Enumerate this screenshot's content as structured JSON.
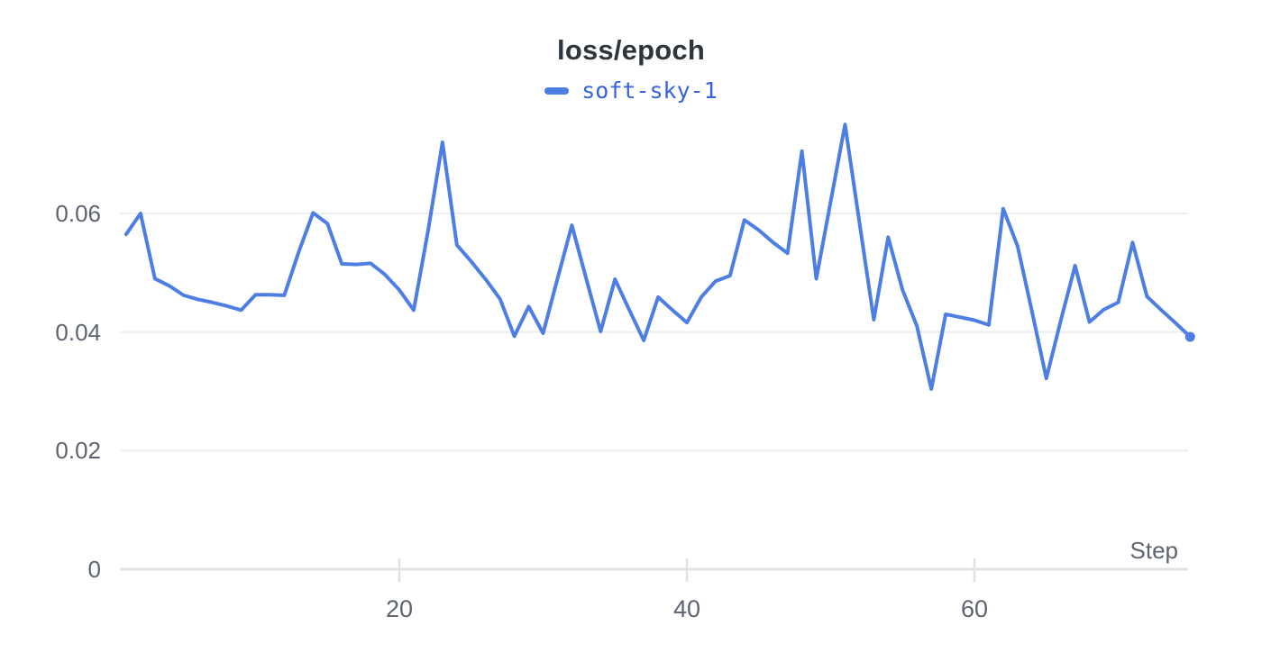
{
  "header": {
    "title": "loss/epoch"
  },
  "legend": {
    "series_label": "soft-sky-1"
  },
  "colors": {
    "line": "#4d7ee3",
    "legend_text": "#3464dd",
    "title_text": "#2f353d",
    "axis_text": "#5d6370",
    "gridline": "#eeeef1",
    "zero_line": "#e2e2e6",
    "tick_mark": "#e0e0e4",
    "background": "#ffffff"
  },
  "chart_data": {
    "type": "line",
    "title": "loss/epoch",
    "xlabel": "Step",
    "ylabel": "",
    "x_range": [
      1,
      75
    ],
    "y_range": [
      0,
      0.0775
    ],
    "grid": "horizontal",
    "legend_position": "top-center",
    "xticks": [
      {
        "value": 20,
        "label": "20"
      },
      {
        "value": 40,
        "label": "40"
      },
      {
        "value": 60,
        "label": "60"
      }
    ],
    "yticks": [
      {
        "value": 0,
        "label": "0"
      },
      {
        "value": 0.02,
        "label": "0.02"
      },
      {
        "value": 0.04,
        "label": "0.04"
      },
      {
        "value": 0.06,
        "label": "0.06"
      }
    ],
    "series": [
      {
        "name": "soft-sky-1",
        "color": "#4d7ee3",
        "endpoint_marker": true,
        "x": [
          1,
          2,
          3,
          4,
          5,
          6,
          7,
          8,
          9,
          10,
          11,
          12,
          13,
          14,
          15,
          16,
          17,
          18,
          19,
          20,
          21,
          22,
          23,
          24,
          25,
          26,
          27,
          28,
          29,
          30,
          31,
          32,
          33,
          34,
          35,
          36,
          37,
          38,
          39,
          40,
          41,
          42,
          43,
          44,
          45,
          46,
          47,
          48,
          49,
          50,
          51,
          52,
          53,
          54,
          55,
          56,
          57,
          58,
          59,
          60,
          61,
          62,
          63,
          64,
          65,
          66,
          67,
          68,
          69,
          70,
          71,
          72,
          73,
          74,
          75
        ],
        "values": [
          0.0565,
          0.06,
          0.049,
          0.0478,
          0.0462,
          0.0455,
          0.045,
          0.0444,
          0.0437,
          0.0463,
          0.0463,
          0.0462,
          0.0535,
          0.0601,
          0.0583,
          0.0515,
          0.0514,
          0.0516,
          0.0497,
          0.0471,
          0.0437,
          0.0571,
          0.072,
          0.0547,
          0.0519,
          0.0489,
          0.0456,
          0.0393,
          0.0443,
          0.0398,
          0.049,
          0.058,
          0.049,
          0.0401,
          0.0489,
          0.0437,
          0.0386,
          0.0459,
          0.0437,
          0.0416,
          0.0459,
          0.0486,
          0.0495,
          0.0589,
          0.0572,
          0.0551,
          0.0533,
          0.0705,
          0.049,
          0.062,
          0.075,
          0.0585,
          0.0421,
          0.056,
          0.0471,
          0.041,
          0.0304,
          0.043,
          0.0425,
          0.042,
          0.0412,
          0.0608,
          0.0545,
          0.0435,
          0.0322,
          0.0419,
          0.0512,
          0.0417,
          0.0438,
          0.045,
          0.0551,
          0.046,
          0.0437,
          0.0415,
          0.0392
        ]
      }
    ]
  }
}
